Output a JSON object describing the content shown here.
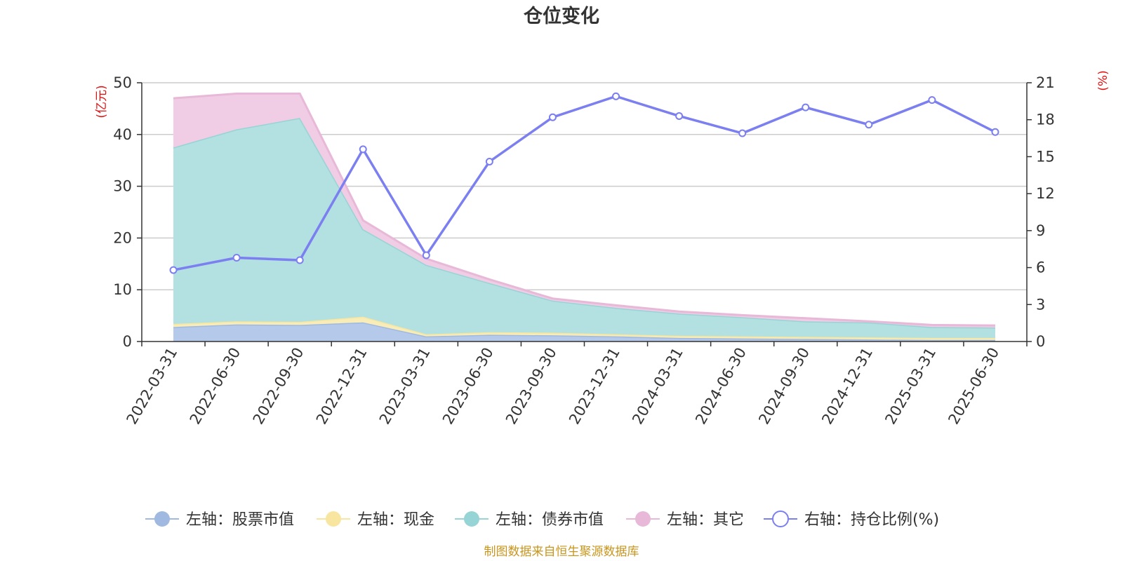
{
  "chart_data": {
    "type": "area",
    "title": "仓位变化",
    "categories": [
      "2022-03-31",
      "2022-06-30",
      "2022-09-30",
      "2022-12-31",
      "2023-03-31",
      "2023-06-30",
      "2023-09-30",
      "2023-12-31",
      "2024-03-31",
      "2024-06-30",
      "2024-09-30",
      "2024-12-31",
      "2025-03-31",
      "2025-06-30"
    ],
    "left_axis": {
      "unit": "(亿元)",
      "ylim": [
        0,
        50
      ],
      "ticks": [
        "0",
        "10",
        "20",
        "30",
        "40",
        "50"
      ]
    },
    "right_axis": {
      "unit": "(%)",
      "ylim": [
        0,
        21
      ],
      "ticks": [
        "0",
        "3",
        "6",
        "9",
        "12",
        "15",
        "18",
        "21"
      ]
    },
    "series": [
      {
        "name": "左轴：股票市值",
        "axis": "left",
        "stacked": true,
        "color": "#9fb9e0",
        "fill": "#b5c9ea",
        "values": [
          2.8,
          3.3,
          3.2,
          3.7,
          1.0,
          1.3,
          1.2,
          1.0,
          0.7,
          0.6,
          0.5,
          0.4,
          0.3,
          0.3
        ]
      },
      {
        "name": "左轴：现金",
        "axis": "left",
        "stacked": true,
        "color": "#f8e6a0",
        "fill": "#f8ecb8",
        "values": [
          0.6,
          0.6,
          0.6,
          1.1,
          0.4,
          0.5,
          0.5,
          0.4,
          0.4,
          0.4,
          0.4,
          0.4,
          0.4,
          0.4
        ]
      },
      {
        "name": "左轴：债券市值",
        "axis": "left",
        "stacked": true,
        "color": "#96d4d6",
        "fill": "#b3e0e1",
        "values": [
          34.1,
          37.1,
          39.4,
          16.9,
          13.4,
          9.5,
          6.2,
          5.1,
          4.3,
          3.7,
          3.0,
          2.9,
          2.1,
          2.0
        ]
      },
      {
        "name": "左轴：其它",
        "axis": "left",
        "stacked": true,
        "color": "#e8b8d8",
        "fill": "#f0cde4",
        "values": [
          9.5,
          6.9,
          4.7,
          1.7,
          1.2,
          0.7,
          0.4,
          0.5,
          0.4,
          0.4,
          0.6,
          0.2,
          0.4,
          0.4
        ]
      },
      {
        "name": "右轴：持仓比例(%)",
        "axis": "right",
        "type": "line",
        "color": "#7b7ff0",
        "values": [
          5.8,
          6.8,
          6.6,
          15.6,
          7.0,
          14.6,
          18.2,
          19.9,
          18.3,
          16.9,
          19.0,
          17.6,
          19.6,
          17.0
        ]
      }
    ],
    "grid": true,
    "legend_position": "bottom",
    "source_note": "制图数据来自恒生聚源数据库"
  }
}
